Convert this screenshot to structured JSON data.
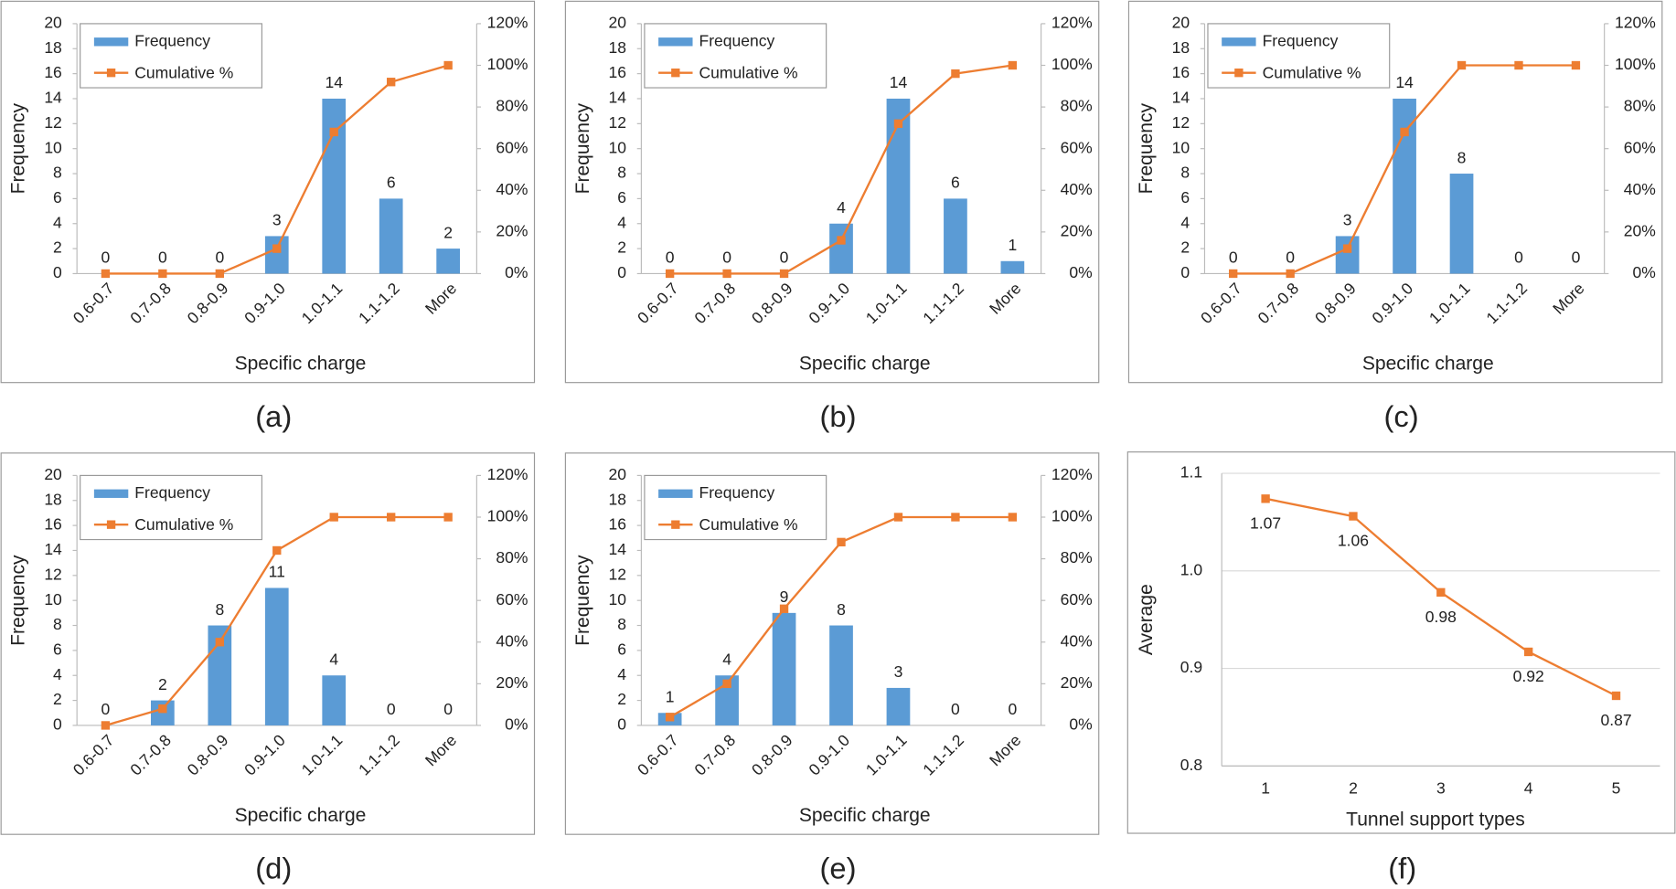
{
  "chart_data": [
    {
      "type": "combo",
      "caption": "(a)",
      "x_label": "Specific charge",
      "y_label": "Frequency",
      "categories": [
        "0.6-0.7",
        "0.7-0.8",
        "0.8-0.9",
        "0.9-1.0",
        "1.0-1.1",
        "1.1-1.2",
        "More"
      ],
      "series": [
        {
          "name": "Frequency",
          "color": "#5b9bd5",
          "values": [
            0,
            0,
            0,
            3,
            14,
            6,
            2
          ]
        },
        {
          "name": "Cumulative %",
          "color": "#ed7d31",
          "axis": "y2",
          "values": [
            0,
            0,
            0,
            12,
            68,
            92,
            100
          ]
        }
      ],
      "ylim": [
        0,
        20
      ],
      "yticks": [
        0,
        2,
        4,
        6,
        8,
        10,
        12,
        14,
        16,
        18,
        20
      ],
      "y2lim": [
        0,
        120
      ],
      "y2ticks": [
        {
          "value": 0,
          "label": "0%"
        },
        {
          "value": 20,
          "label": "20%"
        },
        {
          "value": 40,
          "label": "40%"
        },
        {
          "value": 60,
          "label": "60%"
        },
        {
          "value": 80,
          "label": "80%"
        },
        {
          "value": 100,
          "label": "100%"
        },
        {
          "value": 120,
          "label": "120%"
        }
      ],
      "grid": false,
      "legend": "top-left"
    },
    {
      "type": "combo",
      "caption": "(b)",
      "x_label": "Specific charge",
      "y_label": "Frequency",
      "categories": [
        "0.6-0.7",
        "0.7-0.8",
        "0.8-0.9",
        "0.9-1.0",
        "1.0-1.1",
        "1.1-1.2",
        "More"
      ],
      "series": [
        {
          "name": "Frequency",
          "color": "#5b9bd5",
          "values": [
            0,
            0,
            0,
            4,
            14,
            6,
            1
          ]
        },
        {
          "name": "Cumulative %",
          "color": "#ed7d31",
          "axis": "y2",
          "values": [
            0,
            0,
            0,
            16,
            72,
            96,
            100
          ]
        }
      ],
      "ylim": [
        0,
        20
      ],
      "yticks": [
        0,
        2,
        4,
        6,
        8,
        10,
        12,
        14,
        16,
        18,
        20
      ],
      "y2lim": [
        0,
        120
      ],
      "y2ticks": [
        {
          "value": 0,
          "label": "0%"
        },
        {
          "value": 20,
          "label": "20%"
        },
        {
          "value": 40,
          "label": "40%"
        },
        {
          "value": 60,
          "label": "60%"
        },
        {
          "value": 80,
          "label": "80%"
        },
        {
          "value": 100,
          "label": "100%"
        },
        {
          "value": 120,
          "label": "120%"
        }
      ],
      "grid": false,
      "legend": "top-left"
    },
    {
      "type": "combo",
      "caption": "(c)",
      "x_label": "Specific charge",
      "y_label": "Frequency",
      "categories": [
        "0.6-0.7",
        "0.7-0.8",
        "0.8-0.9",
        "0.9-1.0",
        "1.0-1.1",
        "1.1-1.2",
        "More"
      ],
      "series": [
        {
          "name": "Frequency",
          "color": "#5b9bd5",
          "values": [
            0,
            0,
            3,
            14,
            8,
            0,
            0
          ]
        },
        {
          "name": "Cumulative %",
          "color": "#ed7d31",
          "axis": "y2",
          "values": [
            0,
            0,
            12,
            68,
            100,
            100,
            100
          ]
        }
      ],
      "ylim": [
        0,
        20
      ],
      "yticks": [
        0,
        2,
        4,
        6,
        8,
        10,
        12,
        14,
        16,
        18,
        20
      ],
      "y2lim": [
        0,
        120
      ],
      "y2ticks": [
        {
          "value": 0,
          "label": "0%"
        },
        {
          "value": 20,
          "label": "20%"
        },
        {
          "value": 40,
          "label": "40%"
        },
        {
          "value": 60,
          "label": "60%"
        },
        {
          "value": 80,
          "label": "80%"
        },
        {
          "value": 100,
          "label": "100%"
        },
        {
          "value": 120,
          "label": "120%"
        }
      ],
      "grid": false,
      "legend": "top-left"
    },
    {
      "type": "combo",
      "caption": "(d)",
      "x_label": "Specific charge",
      "y_label": "Frequency",
      "categories": [
        "0.6-0.7",
        "0.7-0.8",
        "0.8-0.9",
        "0.9-1.0",
        "1.0-1.1",
        "1.1-1.2",
        "More"
      ],
      "series": [
        {
          "name": "Frequency",
          "color": "#5b9bd5",
          "values": [
            0,
            2,
            8,
            11,
            4,
            0,
            0
          ]
        },
        {
          "name": "Cumulative %",
          "color": "#ed7d31",
          "axis": "y2",
          "values": [
            0,
            8,
            40,
            84,
            100,
            100,
            100
          ]
        }
      ],
      "ylim": [
        0,
        20
      ],
      "yticks": [
        0,
        2,
        4,
        6,
        8,
        10,
        12,
        14,
        16,
        18,
        20
      ],
      "y2lim": [
        0,
        120
      ],
      "y2ticks": [
        {
          "value": 0,
          "label": "0%"
        },
        {
          "value": 20,
          "label": "20%"
        },
        {
          "value": 40,
          "label": "40%"
        },
        {
          "value": 60,
          "label": "60%"
        },
        {
          "value": 80,
          "label": "80%"
        },
        {
          "value": 100,
          "label": "100%"
        },
        {
          "value": 120,
          "label": "120%"
        }
      ],
      "grid": false,
      "legend": "top-left"
    },
    {
      "type": "combo",
      "caption": "(e)",
      "x_label": "Specific charge",
      "y_label": "Frequency",
      "categories": [
        "0.6-0.7",
        "0.7-0.8",
        "0.8-0.9",
        "0.9-1.0",
        "1.0-1.1",
        "1.1-1.2",
        "More"
      ],
      "series": [
        {
          "name": "Frequency",
          "color": "#5b9bd5",
          "values": [
            1,
            4,
            9,
            8,
            3,
            0,
            0
          ]
        },
        {
          "name": "Cumulative %",
          "color": "#ed7d31",
          "axis": "y2",
          "values": [
            4,
            20,
            56,
            88,
            100,
            100,
            100
          ]
        }
      ],
      "ylim": [
        0,
        20
      ],
      "yticks": [
        0,
        2,
        4,
        6,
        8,
        10,
        12,
        14,
        16,
        18,
        20
      ],
      "y2lim": [
        0,
        120
      ],
      "y2ticks": [
        {
          "value": 0,
          "label": "0%"
        },
        {
          "value": 20,
          "label": "20%"
        },
        {
          "value": 40,
          "label": "40%"
        },
        {
          "value": 60,
          "label": "60%"
        },
        {
          "value": 80,
          "label": "80%"
        },
        {
          "value": 100,
          "label": "100%"
        },
        {
          "value": 120,
          "label": "120%"
        }
      ],
      "grid": false,
      "legend": "top-left"
    },
    {
      "type": "line",
      "caption": "(f)",
      "x_label": "Tunnel support types",
      "y_label": "Average",
      "categories": [
        "1",
        "2",
        "3",
        "4",
        "5"
      ],
      "color": "#ed7d31",
      "values": [
        1.074,
        1.056,
        0.978,
        0.917,
        0.872
      ],
      "value_labels": [
        "1.07",
        "1.06",
        "0.98",
        "0.92",
        "0.87"
      ],
      "ylim": [
        0.8,
        1.1
      ],
      "yticks": [
        0.8,
        0.9,
        {
          "value": 1,
          "label": "1.0"
        },
        1.1
      ],
      "grid": true
    }
  ]
}
